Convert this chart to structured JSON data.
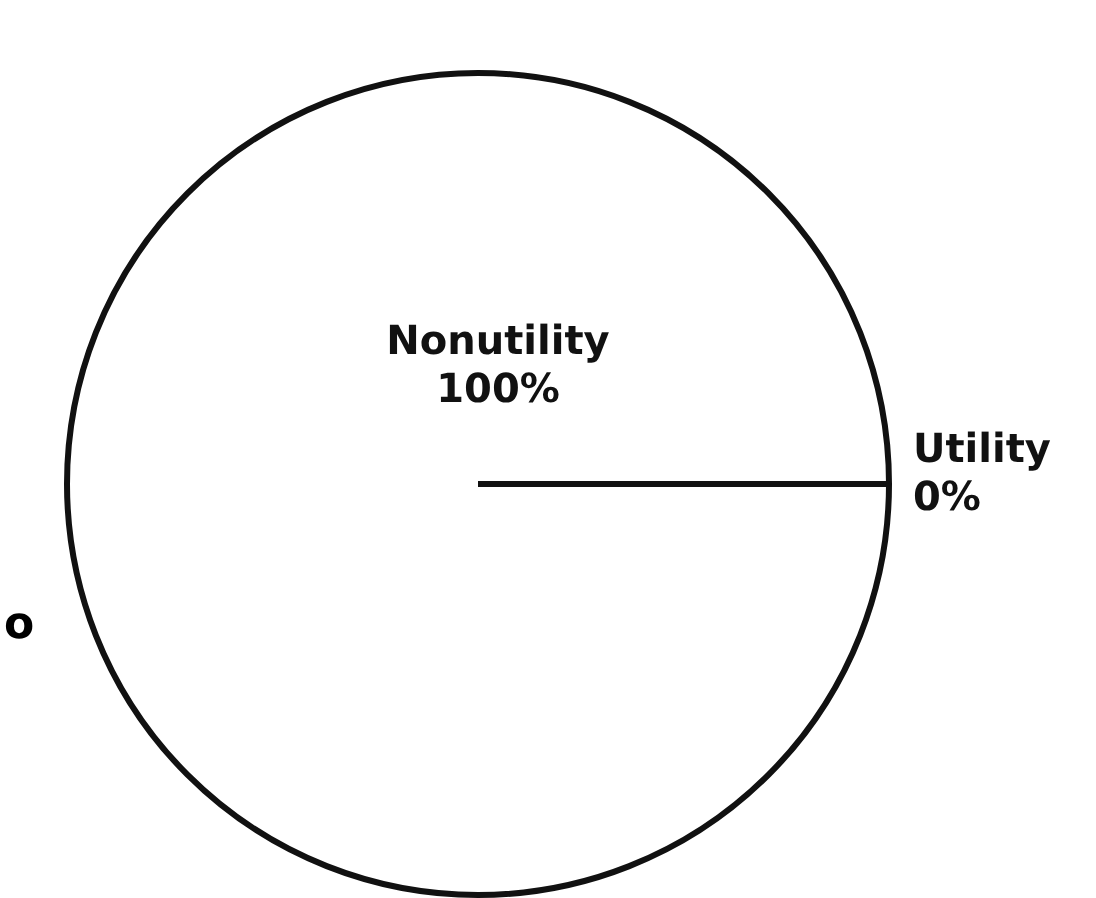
{
  "chart_data": {
    "type": "pie",
    "categories": [
      "Nonutility",
      "Utility"
    ],
    "values": [
      100,
      0
    ],
    "colors": [
      "#ffffff",
      "#ffffff"
    ],
    "value_labels": [
      "100%",
      "0%"
    ],
    "annotations": [
      "o"
    ],
    "legend": false
  }
}
